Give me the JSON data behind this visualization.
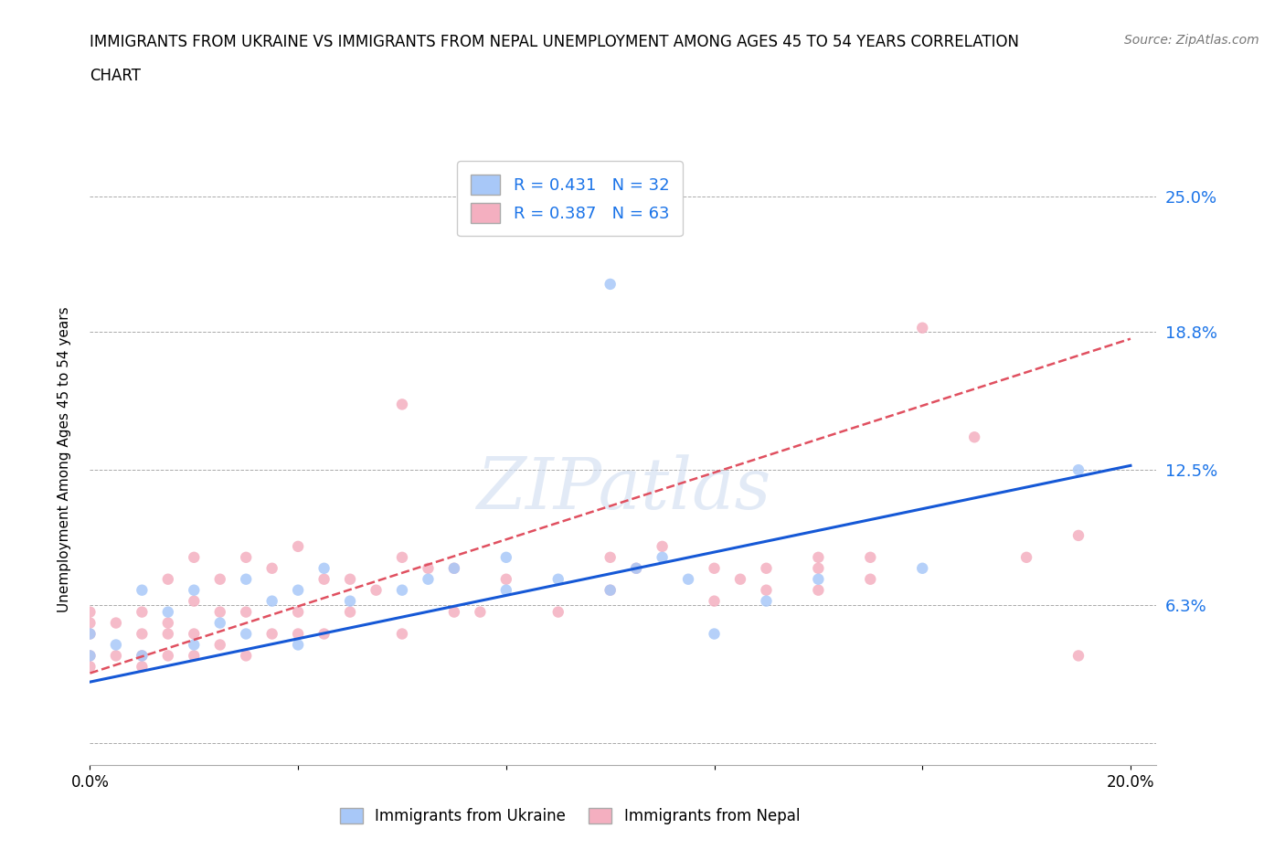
{
  "title_line1": "IMMIGRANTS FROM UKRAINE VS IMMIGRANTS FROM NEPAL UNEMPLOYMENT AMONG AGES 45 TO 54 YEARS CORRELATION",
  "title_line2": "CHART",
  "source": "Source: ZipAtlas.com",
  "ylabel": "Unemployment Among Ages 45 to 54 years",
  "xlim": [
    0.0,
    0.205
  ],
  "ylim": [
    -0.01,
    0.27
  ],
  "ytick_vals": [
    0.0,
    0.063,
    0.125,
    0.188,
    0.25
  ],
  "ytick_labels": [
    "",
    "6.3%",
    "12.5%",
    "18.8%",
    "25.0%"
  ],
  "xtick_vals": [
    0.0,
    0.04,
    0.08,
    0.12,
    0.16,
    0.2
  ],
  "xtick_labels": [
    "0.0%",
    "",
    "",
    "",
    "",
    "20.0%"
  ],
  "ukraine_color": "#a8c8f8",
  "nepal_color": "#f4afc0",
  "ukraine_line_color": "#1558d6",
  "nepal_line_color": "#e05060",
  "nepal_line_style": "--",
  "ukraine_R": 0.431,
  "ukraine_N": 32,
  "nepal_R": 0.387,
  "nepal_N": 63,
  "ukraine_scatter_x": [
    0.0,
    0.0,
    0.005,
    0.01,
    0.01,
    0.015,
    0.02,
    0.02,
    0.025,
    0.03,
    0.03,
    0.035,
    0.04,
    0.04,
    0.045,
    0.05,
    0.06,
    0.065,
    0.07,
    0.08,
    0.08,
    0.09,
    0.1,
    0.1,
    0.105,
    0.11,
    0.115,
    0.12,
    0.13,
    0.14,
    0.16,
    0.19
  ],
  "ukraine_scatter_y": [
    0.04,
    0.05,
    0.045,
    0.04,
    0.07,
    0.06,
    0.045,
    0.07,
    0.055,
    0.05,
    0.075,
    0.065,
    0.045,
    0.07,
    0.08,
    0.065,
    0.07,
    0.075,
    0.08,
    0.07,
    0.085,
    0.075,
    0.07,
    0.21,
    0.08,
    0.085,
    0.075,
    0.05,
    0.065,
    0.075,
    0.08,
    0.125
  ],
  "nepal_scatter_x": [
    0.0,
    0.0,
    0.0,
    0.0,
    0.0,
    0.005,
    0.005,
    0.01,
    0.01,
    0.01,
    0.01,
    0.015,
    0.015,
    0.015,
    0.015,
    0.02,
    0.02,
    0.02,
    0.02,
    0.025,
    0.025,
    0.025,
    0.03,
    0.03,
    0.03,
    0.035,
    0.035,
    0.04,
    0.04,
    0.04,
    0.045,
    0.045,
    0.05,
    0.05,
    0.055,
    0.06,
    0.06,
    0.065,
    0.07,
    0.07,
    0.075,
    0.08,
    0.09,
    0.1,
    0.1,
    0.105,
    0.11,
    0.12,
    0.12,
    0.125,
    0.13,
    0.13,
    0.14,
    0.14,
    0.14,
    0.15,
    0.15,
    0.16,
    0.17,
    0.18,
    0.19,
    0.19,
    0.06
  ],
  "nepal_scatter_y": [
    0.035,
    0.04,
    0.05,
    0.055,
    0.06,
    0.04,
    0.055,
    0.035,
    0.04,
    0.05,
    0.06,
    0.04,
    0.05,
    0.055,
    0.075,
    0.04,
    0.05,
    0.065,
    0.085,
    0.045,
    0.06,
    0.075,
    0.04,
    0.06,
    0.085,
    0.05,
    0.08,
    0.05,
    0.06,
    0.09,
    0.05,
    0.075,
    0.06,
    0.075,
    0.07,
    0.05,
    0.085,
    0.08,
    0.06,
    0.08,
    0.06,
    0.075,
    0.06,
    0.07,
    0.085,
    0.08,
    0.09,
    0.065,
    0.08,
    0.075,
    0.07,
    0.08,
    0.07,
    0.08,
    0.085,
    0.075,
    0.085,
    0.19,
    0.14,
    0.085,
    0.095,
    0.04,
    0.155
  ]
}
